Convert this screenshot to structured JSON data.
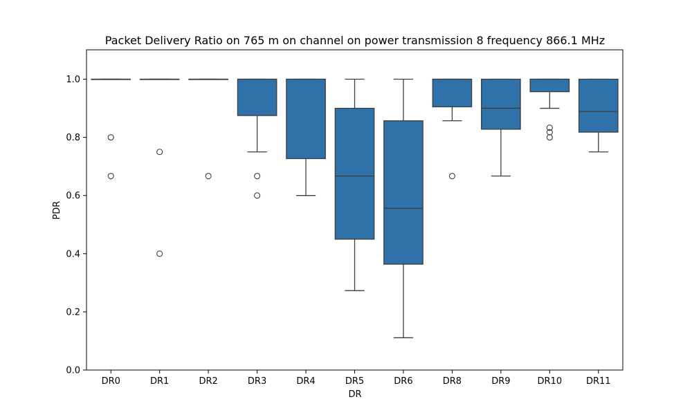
{
  "chart_data": {
    "type": "box",
    "title": "Packet Delivery Ratio on 765 m on channel on power transmission 8 frequency 866.1 MHz",
    "xlabel": "DR",
    "ylabel": "PDR",
    "ylim": [
      0,
      1.1
    ],
    "yticks": [
      "0.0",
      "0.2",
      "0.4",
      "0.6",
      "0.8",
      "1.0"
    ],
    "categories": [
      "DR0",
      "DR1",
      "DR2",
      "DR3",
      "DR4",
      "DR5",
      "DR6",
      "DR8",
      "DR9",
      "DR10",
      "DR11"
    ],
    "color": "#2f72aa",
    "grid": false,
    "boxes": [
      {
        "label": "DR0",
        "whisker_low": 1.0,
        "q1": 1.0,
        "median": 1.0,
        "q3": 1.0,
        "whisker_high": 1.0,
        "outliers": [
          0.8,
          0.667
        ]
      },
      {
        "label": "DR1",
        "whisker_low": 1.0,
        "q1": 1.0,
        "median": 1.0,
        "q3": 1.0,
        "whisker_high": 1.0,
        "outliers": [
          0.75,
          0.4
        ]
      },
      {
        "label": "DR2",
        "whisker_low": 1.0,
        "q1": 1.0,
        "median": 1.0,
        "q3": 1.0,
        "whisker_high": 1.0,
        "outliers": [
          0.667
        ]
      },
      {
        "label": "DR3",
        "whisker_low": 0.75,
        "q1": 0.875,
        "median": 1.0,
        "q3": 1.0,
        "whisker_high": 1.0,
        "outliers": [
          0.667,
          0.6
        ]
      },
      {
        "label": "DR4",
        "whisker_low": 0.6,
        "q1": 0.727,
        "median": 1.0,
        "q3": 1.0,
        "whisker_high": 1.0,
        "outliers": []
      },
      {
        "label": "DR5",
        "whisker_low": 0.273,
        "q1": 0.45,
        "median": 0.667,
        "q3": 0.9,
        "whisker_high": 1.0,
        "outliers": []
      },
      {
        "label": "DR6",
        "whisker_low": 0.111,
        "q1": 0.364,
        "median": 0.556,
        "q3": 0.857,
        "whisker_high": 1.0,
        "outliers": []
      },
      {
        "label": "DR8",
        "whisker_low": 0.857,
        "q1": 0.905,
        "median": 1.0,
        "q3": 1.0,
        "whisker_high": 1.0,
        "outliers": [
          0.667
        ]
      },
      {
        "label": "DR9",
        "whisker_low": 0.667,
        "q1": 0.828,
        "median": 0.9,
        "q3": 1.0,
        "whisker_high": 1.0,
        "outliers": []
      },
      {
        "label": "DR10",
        "whisker_low": 0.9,
        "q1": 0.957,
        "median": 1.0,
        "q3": 1.0,
        "whisker_high": 1.0,
        "outliers": [
          0.833,
          0.818,
          0.8
        ]
      },
      {
        "label": "DR11",
        "whisker_low": 0.75,
        "q1": 0.818,
        "median": 0.889,
        "q3": 1.0,
        "whisker_high": 1.0,
        "outliers": []
      }
    ]
  }
}
